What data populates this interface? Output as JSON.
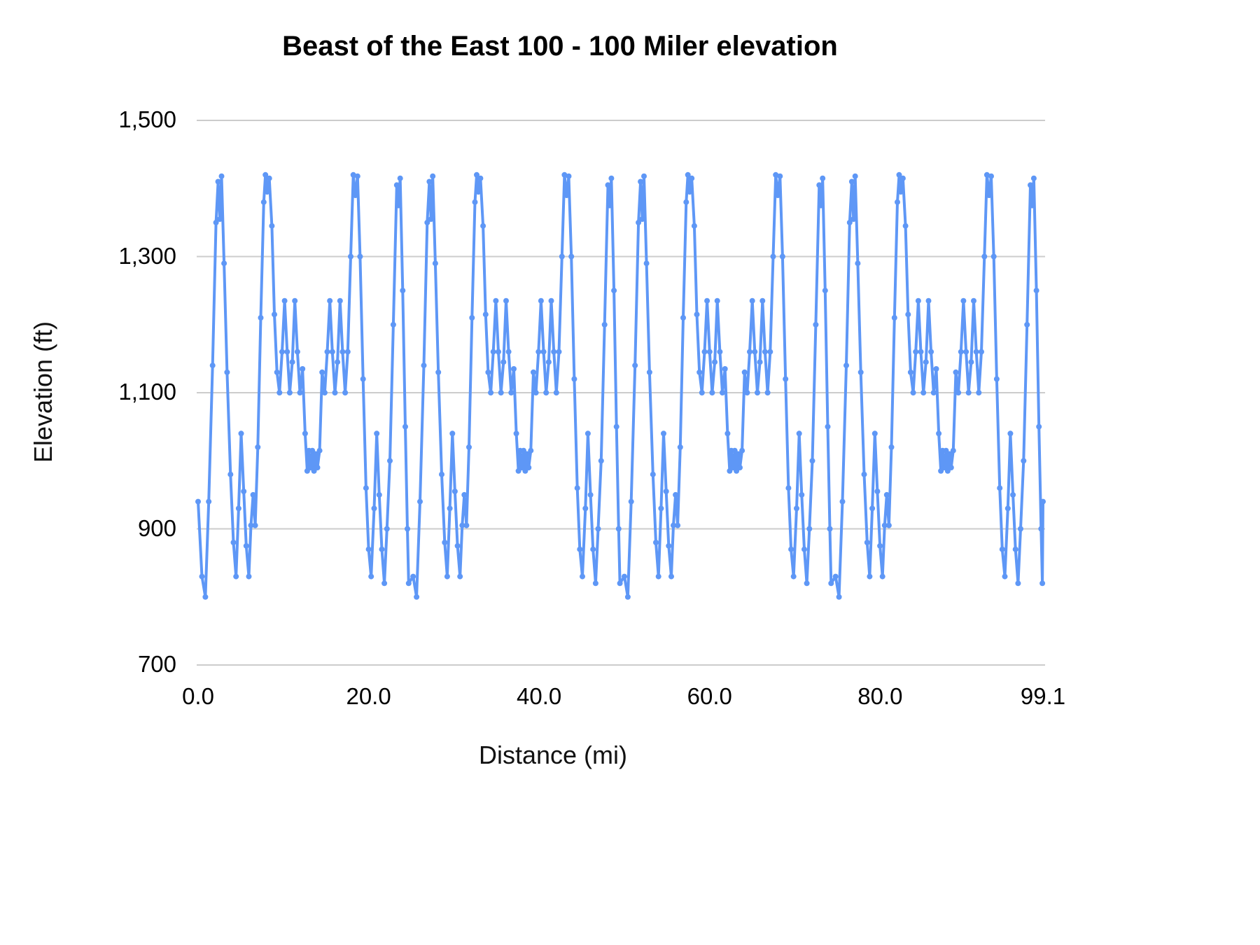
{
  "chart_data": {
    "type": "line",
    "title": "Beast of the East 100 - 100 Miler elevation",
    "xlabel": "Distance (mi)",
    "ylabel": "Elevation (ft)",
    "xlim": [
      0,
      99.1
    ],
    "ylim": [
      700,
      1500
    ],
    "x_tick_values": [
      0,
      20,
      40,
      60,
      80,
      99.1
    ],
    "x_tick_labels": [
      "0.0",
      "20.0",
      "40.0",
      "60.0",
      "80.0",
      "99.1"
    ],
    "y_tick_values": [
      700,
      900,
      1100,
      1300,
      1500
    ],
    "y_tick_labels": [
      "700",
      "900",
      "1,100",
      "1,300",
      "1,500"
    ],
    "grid": "horizontal",
    "gridline_color": "#cccccc",
    "legend": "none",
    "line_color": "#5e97f6",
    "series_name": "elevation",
    "repeats": 4,
    "loop_miles": 24.775,
    "loop_profile": {
      "d": [
        0.0,
        0.45,
        0.85,
        1.25,
        1.7,
        2.1,
        2.35,
        2.55,
        2.75,
        3.05,
        3.4,
        3.8,
        4.15,
        4.45,
        4.75,
        5.05,
        5.35,
        5.65,
        5.95,
        6.2,
        6.45,
        6.7,
        7.0,
        7.35,
        7.7,
        7.9,
        8.1,
        8.35,
        8.65,
        8.95,
        9.25,
        9.55,
        9.85,
        10.15,
        10.45,
        10.75,
        11.05,
        11.35,
        11.65,
        11.95,
        12.25,
        12.55,
        12.8,
        13.0,
        13.2,
        13.4,
        13.6,
        13.8,
        14.0,
        14.25,
        14.55,
        14.85,
        15.15,
        15.45,
        15.75,
        16.05,
        16.35,
        16.65,
        16.95,
        17.25,
        17.55,
        17.9,
        18.2,
        18.45,
        18.7,
        19.0,
        19.35,
        19.7,
        20.0,
        20.3,
        20.65,
        20.95,
        21.25,
        21.55,
        21.85,
        22.15,
        22.5,
        22.9,
        23.3,
        23.5,
        23.7,
        24.0,
        24.3,
        24.55,
        24.7
      ],
      "ft": [
        940,
        830,
        800,
        940,
        1140,
        1350,
        1410,
        1355,
        1418,
        1290,
        1130,
        980,
        880,
        830,
        930,
        1040,
        955,
        875,
        830,
        905,
        950,
        905,
        1020,
        1210,
        1380,
        1420,
        1395,
        1415,
        1345,
        1215,
        1130,
        1100,
        1160,
        1235,
        1160,
        1100,
        1145,
        1235,
        1160,
        1100,
        1135,
        1040,
        985,
        1015,
        990,
        1015,
        985,
        1010,
        990,
        1015,
        1130,
        1100,
        1160,
        1235,
        1160,
        1100,
        1145,
        1235,
        1160,
        1100,
        1160,
        1300,
        1420,
        1390,
        1418,
        1300,
        1120,
        960,
        870,
        830,
        930,
        1040,
        950,
        870,
        820,
        900,
        1000,
        1200,
        1405,
        1375,
        1415,
        1250,
        1050,
        900,
        820
      ]
    }
  }
}
